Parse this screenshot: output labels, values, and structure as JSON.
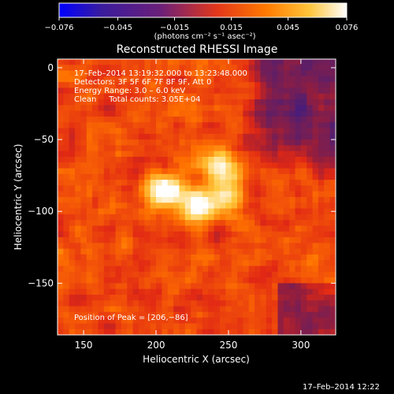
{
  "colorbar": {
    "tick_labels": [
      "−0.076",
      "−0.045",
      "−0.015",
      "0.015",
      "0.045",
      "0.076"
    ],
    "unit_label": "(photons cm⁻² s⁻¹ asec⁻²)",
    "range": [
      -0.076,
      0.076
    ],
    "colors": [
      "#0000ff",
      "#3b1c9c",
      "#6a1f7a",
      "#e3371a",
      "#ff7a00",
      "#ffc43a",
      "#ffffff"
    ]
  },
  "image": {
    "title": "Reconstructed RHESSI Image",
    "info_lines": [
      "17–Feb–2014 13:19:32.000 to 13:23:48.000",
      "Detectors: 3F 5F 6F 7F 8F 9F, Att 0",
      "Energy Range: 3.0 – 6.0 keV",
      "Clean     Total counts: 3.05E+04"
    ],
    "peak_label": "Position of Peak = [206,−86]",
    "footer_timestamp": "17–Feb–2014 12:22"
  },
  "chart_data": {
    "type": "heatmap",
    "title": "Reconstructed RHESSI Image",
    "xlabel": "Heliocentric X (arcsec)",
    "ylabel": "Heliocentric Y (arcsec)",
    "xlim": [
      132,
      324
    ],
    "ylim": [
      -186,
      6
    ],
    "x_ticks": [
      150,
      200,
      250,
      300
    ],
    "y_ticks": [
      0,
      -50,
      -100,
      -150
    ],
    "x_tick_labels": [
      "150",
      "200",
      "250",
      "300"
    ],
    "y_tick_labels": [
      "0",
      "−50",
      "−100",
      "−150"
    ],
    "peak_position": [
      206,
      -86
    ],
    "sources": [
      {
        "x": 207,
        "y": -86,
        "amplitude": 0.075
      },
      {
        "x": 229,
        "y": -96,
        "amplitude": 0.07
      },
      {
        "x": 243,
        "y": -67,
        "amplitude": 0.055
      },
      {
        "x": 248,
        "y": -88,
        "amplitude": 0.045
      }
    ]
  }
}
